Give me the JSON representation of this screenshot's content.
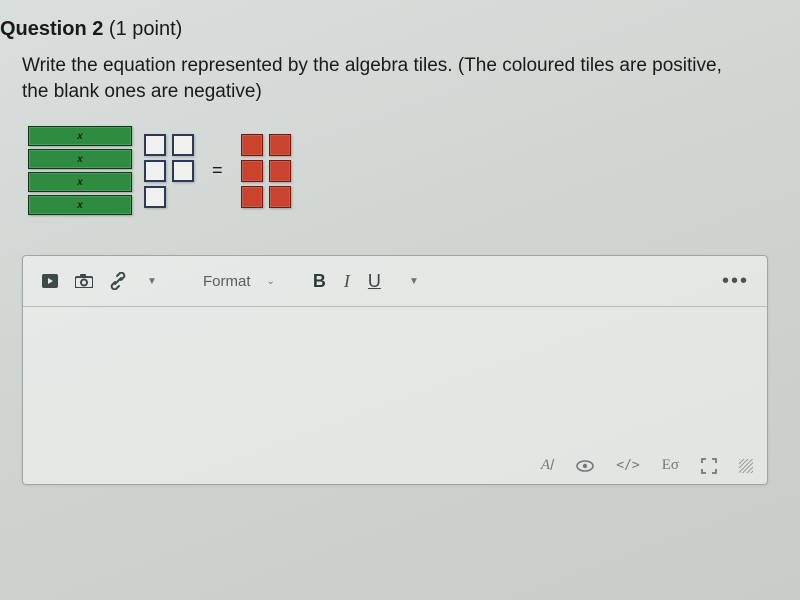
{
  "question": {
    "label_word": "Question",
    "number": "2",
    "points_text": "(1 point)",
    "prompt": "Write the equation represented by the algebra tiles. (The coloured tiles are positive, the blank ones are negative)"
  },
  "tiles": {
    "x_bar_label": "x",
    "x_bar_count": 4,
    "neg_unit_count": 5,
    "equals_symbol": "=",
    "pos_unit_count": 6,
    "colors": {
      "x_bar_fill": "#2e8b3f",
      "x_bar_border": "#0a3b14",
      "neg_unit_fill": "#f0f1ee",
      "neg_unit_border": "#2c3a5a",
      "pos_unit_fill": "#c9432f",
      "pos_unit_border": "#6b1f14"
    }
  },
  "editor": {
    "format_label": "Format",
    "bold": "B",
    "italic": "I",
    "underline": "U",
    "more": "•••",
    "footer": {
      "font_label": "A",
      "code_label": "</>",
      "eq_label": "Eσ"
    }
  }
}
